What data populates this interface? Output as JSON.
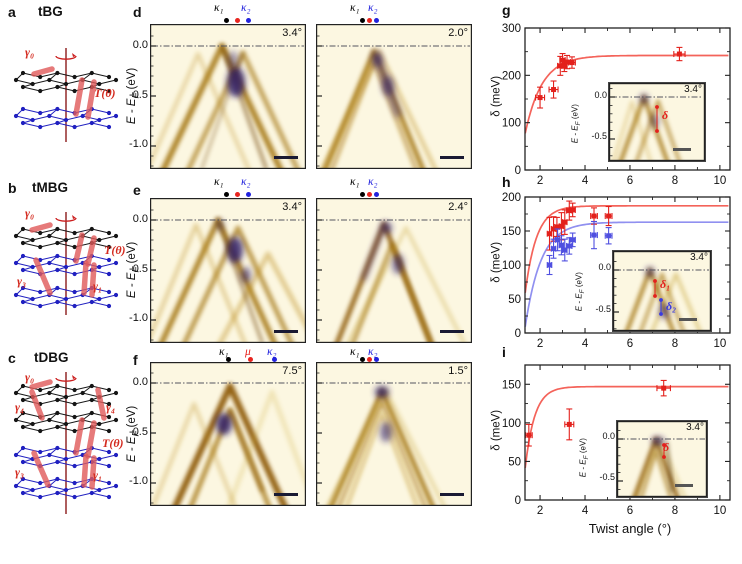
{
  "schematics": [
    {
      "letter": "a",
      "title": "tBG",
      "gamma0": "γ₀",
      "T": "T(θ)"
    },
    {
      "letter": "b",
      "title": "tMBG",
      "gamma0": "γ₀",
      "T": "T(θ)",
      "gamma3": "γ₃",
      "gamma1": "γ₁"
    },
    {
      "letter": "c",
      "title": "tDBG",
      "gamma0": "γ₀",
      "gamma4_left": "γ₄",
      "gamma4_right": "γ₄",
      "T": "T(θ)",
      "gamma3": "γ₃",
      "gamma1": "γ₁"
    }
  ],
  "markers": {
    "kappa1": "κ₁",
    "kappa2": "κ₂",
    "mu": "μ"
  },
  "spectra_axis": {
    "label_main": "E - E",
    "label_sub": "F",
    "label_unit": " (eV)",
    "yticks": [
      "0.0",
      "-0.5",
      "-1.0"
    ]
  },
  "spectra": [
    {
      "letter": "d",
      "left_angle": "3.4°",
      "right_angle": "2.0°"
    },
    {
      "letter": "e",
      "left_angle": "3.4°",
      "right_angle": "2.4°"
    },
    {
      "letter": "f",
      "left_angle": "7.5°",
      "right_angle": "1.5°"
    }
  ],
  "chart_data": [
    {
      "panel": "g",
      "type": "scatter",
      "xlabel": "",
      "ylabel": "δ (meV)",
      "xlim": [
        1.33,
        10.45
      ],
      "ylim": [
        0,
        300
      ],
      "xticks": [
        2,
        4,
        6,
        8,
        10
      ],
      "yticks": [
        0,
        100,
        200,
        300
      ],
      "series": [
        {
          "name": "δ",
          "color": "#e3211c",
          "curve_color": "#f4635a",
          "points": [
            [
              2.0,
              153,
              0.2,
              22
            ],
            [
              2.6,
              170,
              0.2,
              18
            ],
            [
              2.9,
              220,
              0.12,
              20
            ],
            [
              3.0,
              232,
              0.12,
              14
            ],
            [
              3.08,
              220,
              0.12,
              12
            ],
            [
              3.2,
              228,
              0.15,
              14
            ],
            [
              3.42,
              227,
              0.15,
              12
            ],
            [
              8.2,
              245,
              0.25,
              14
            ]
          ],
          "fit": {
            "A": 242,
            "x0": 1.05,
            "tau": 0.75
          }
        }
      ],
      "inset": {
        "angle": "3.4°",
        "delta": "δ",
        "yticks": [
          "0.0",
          "-0.5"
        ],
        "ylabel_main": "E - E",
        "ylabel_sub": "F",
        "ylabel_unit": " (eV)"
      }
    },
    {
      "panel": "h",
      "type": "scatter",
      "xlabel": "",
      "ylabel": "δ (meV)",
      "xlim": [
        1.33,
        10.45
      ],
      "ylim": [
        0,
        200
      ],
      "xticks": [
        2,
        4,
        6,
        8,
        10
      ],
      "yticks": [
        0,
        50,
        100,
        150,
        200
      ],
      "series": [
        {
          "name": "δ₁",
          "color": "#e3211c",
          "curve_color": "#f4635a",
          "points": [
            [
              2.42,
              146,
              0.1,
              24
            ],
            [
              2.6,
              153,
              0.1,
              18
            ],
            [
              2.75,
              156,
              0.1,
              14
            ],
            [
              2.95,
              157,
              0.1,
              20
            ],
            [
              3.1,
              163,
              0.1,
              18
            ],
            [
              3.3,
              180,
              0.12,
              14
            ],
            [
              3.45,
              181,
              0.12,
              10
            ],
            [
              4.4,
              172,
              0.15,
              12
            ],
            [
              5.05,
              172,
              0.15,
              14
            ]
          ],
          "fit": {
            "A": 187,
            "x0": 1.15,
            "tau": 0.5
          }
        },
        {
          "name": "δ₂",
          "color": "#5050e0",
          "curve_color": "#9090f0",
          "points": [
            [
              2.42,
              100,
              0.1,
              14
            ],
            [
              2.6,
              124,
              0.1,
              14
            ],
            [
              2.78,
              137,
              0.1,
              16
            ],
            [
              2.95,
              129,
              0.1,
              14
            ],
            [
              3.1,
              122,
              0.1,
              16
            ],
            [
              3.3,
              128,
              0.12,
              12
            ],
            [
              3.45,
              137,
              0.12,
              10
            ],
            [
              4.4,
              144,
              0.15,
              20
            ],
            [
              5.05,
              143,
              0.15,
              12
            ]
          ],
          "fit": {
            "A": 163,
            "x0": 1.3,
            "tau": 0.7
          }
        }
      ],
      "inset": {
        "angle": "3.4°",
        "delta1": "δ₁",
        "delta2": "δ₂",
        "yticks": [
          "0.0",
          "-0.5"
        ],
        "ylabel_main": "E - E",
        "ylabel_sub": "F",
        "ylabel_unit": " (eV)"
      }
    },
    {
      "panel": "i",
      "type": "scatter",
      "xlabel": "Twist angle (°)",
      "ylabel": "δ (meV)",
      "xlim": [
        1.33,
        10.45
      ],
      "ylim": [
        0,
        175
      ],
      "xticks": [
        2,
        4,
        6,
        8,
        10
      ],
      "yticks": [
        0,
        50,
        100,
        150
      ],
      "series": [
        {
          "name": "δ",
          "color": "#e3211c",
          "curve_color": "#f4635a",
          "points": [
            [
              1.5,
              84,
              0.15,
              14
            ],
            [
              3.3,
              98,
              0.2,
              20
            ],
            [
              7.5,
              145,
              0.3,
              10
            ]
          ],
          "fit": {
            "A": 147,
            "x0": 1.2,
            "tau": 0.42
          }
        }
      ],
      "inset": {
        "angle": "3.4°",
        "delta": "δ",
        "yticks": [
          "0.0",
          "-0.5"
        ],
        "ylabel_main": "E - E",
        "ylabel_sub": "F",
        "ylabel_unit": " (eV)"
      }
    }
  ]
}
